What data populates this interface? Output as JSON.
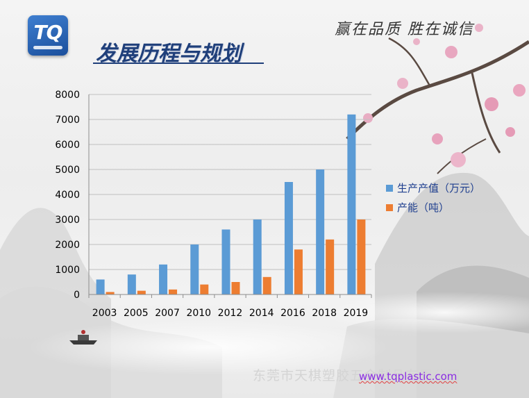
{
  "header": {
    "logo_text": "TQ",
    "title": "发展历程与规划",
    "slogan": "赢在品质 胜在诚信"
  },
  "footer": {
    "company": "东莞市天棋塑胶五金制品有限公司",
    "url": "www.tqplastic.com"
  },
  "colors": {
    "series_1": "#5b9bd5",
    "series_2": "#ed7d31",
    "title": "#1f3f7a",
    "legend_text": "#1f3f8f"
  },
  "chart_data": {
    "type": "bar",
    "categories": [
      "2003",
      "2005",
      "2007",
      "2010",
      "2012",
      "2014",
      "2016",
      "2018",
      "2019"
    ],
    "series": [
      {
        "name": "生产产值（万元）",
        "values": [
          600,
          800,
          1200,
          2000,
          2600,
          3000,
          4500,
          5000,
          7200
        ]
      },
      {
        "name": "产能（吨）",
        "values": [
          100,
          150,
          200,
          400,
          500,
          700,
          1800,
          2200,
          3000
        ]
      }
    ],
    "yticks": [
      "0",
      "1000",
      "2000",
      "3000",
      "4000",
      "5000",
      "6000",
      "7000",
      "8000"
    ],
    "ylim": [
      0,
      8000
    ],
    "grid": true,
    "legend_position": "right"
  }
}
